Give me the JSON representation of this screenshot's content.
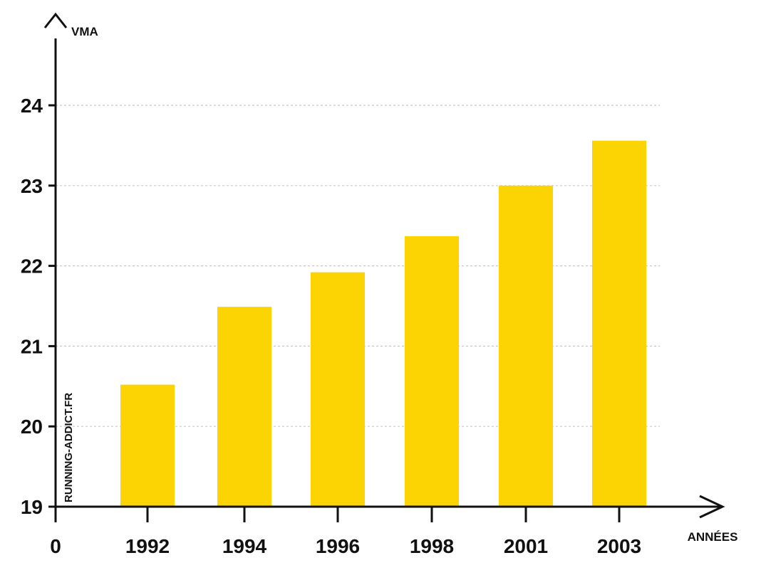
{
  "chart_data": {
    "type": "bar",
    "title": "",
    "xlabel": "ANNÉES",
    "ylabel": "VMA",
    "x_origin_label": "0",
    "categories": [
      "1992",
      "1994",
      "1996",
      "1998",
      "2001",
      "2003"
    ],
    "values": [
      20.52,
      21.49,
      21.92,
      22.37,
      23.0,
      23.56
    ],
    "ylim": [
      19,
      24
    ],
    "yticks": [
      "19",
      "20",
      "21",
      "22",
      "23",
      "24"
    ],
    "grid": true,
    "legend": "none",
    "watermark": "RUNNING-ADDICT.FR"
  },
  "colors": {
    "bar": "#FCD404",
    "axis": "#111111",
    "grid": "#c8c8c8"
  }
}
